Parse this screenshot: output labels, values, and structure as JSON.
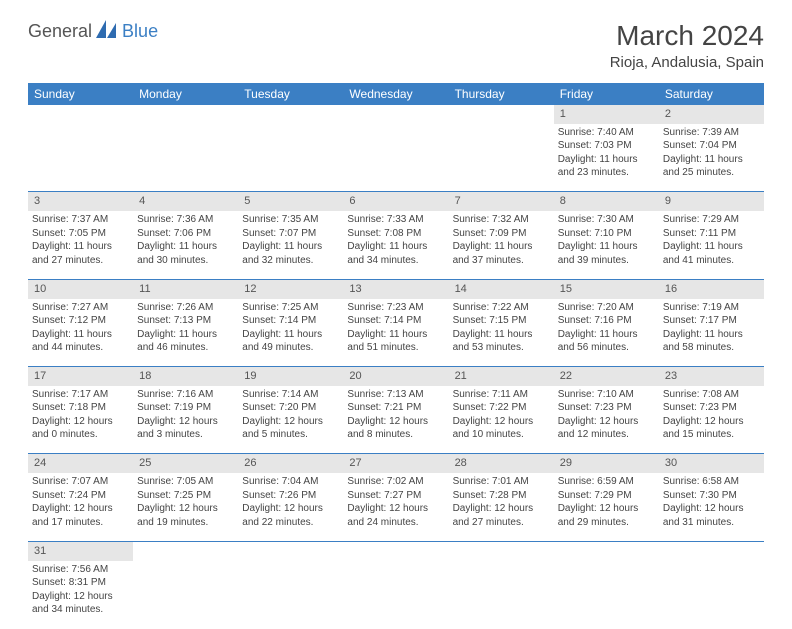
{
  "logo": {
    "part1": "General",
    "part2": "Blue"
  },
  "title": "March 2024",
  "location": "Rioja, Andalusia, Spain",
  "colors": {
    "header_bg": "#3b7fc4",
    "header_text": "#ffffff",
    "daynum_bg": "#e6e6e6",
    "cell_border": "#3b7fc4",
    "body_text": "#444444"
  },
  "day_headers": [
    "Sunday",
    "Monday",
    "Tuesday",
    "Wednesday",
    "Thursday",
    "Friday",
    "Saturday"
  ],
  "weeks": [
    [
      null,
      null,
      null,
      null,
      null,
      {
        "n": "1",
        "sunrise": "Sunrise: 7:40 AM",
        "sunset": "Sunset: 7:03 PM",
        "daylight1": "Daylight: 11 hours",
        "daylight2": "and 23 minutes."
      },
      {
        "n": "2",
        "sunrise": "Sunrise: 7:39 AM",
        "sunset": "Sunset: 7:04 PM",
        "daylight1": "Daylight: 11 hours",
        "daylight2": "and 25 minutes."
      }
    ],
    [
      {
        "n": "3",
        "sunrise": "Sunrise: 7:37 AM",
        "sunset": "Sunset: 7:05 PM",
        "daylight1": "Daylight: 11 hours",
        "daylight2": "and 27 minutes."
      },
      {
        "n": "4",
        "sunrise": "Sunrise: 7:36 AM",
        "sunset": "Sunset: 7:06 PM",
        "daylight1": "Daylight: 11 hours",
        "daylight2": "and 30 minutes."
      },
      {
        "n": "5",
        "sunrise": "Sunrise: 7:35 AM",
        "sunset": "Sunset: 7:07 PM",
        "daylight1": "Daylight: 11 hours",
        "daylight2": "and 32 minutes."
      },
      {
        "n": "6",
        "sunrise": "Sunrise: 7:33 AM",
        "sunset": "Sunset: 7:08 PM",
        "daylight1": "Daylight: 11 hours",
        "daylight2": "and 34 minutes."
      },
      {
        "n": "7",
        "sunrise": "Sunrise: 7:32 AM",
        "sunset": "Sunset: 7:09 PM",
        "daylight1": "Daylight: 11 hours",
        "daylight2": "and 37 minutes."
      },
      {
        "n": "8",
        "sunrise": "Sunrise: 7:30 AM",
        "sunset": "Sunset: 7:10 PM",
        "daylight1": "Daylight: 11 hours",
        "daylight2": "and 39 minutes."
      },
      {
        "n": "9",
        "sunrise": "Sunrise: 7:29 AM",
        "sunset": "Sunset: 7:11 PM",
        "daylight1": "Daylight: 11 hours",
        "daylight2": "and 41 minutes."
      }
    ],
    [
      {
        "n": "10",
        "sunrise": "Sunrise: 7:27 AM",
        "sunset": "Sunset: 7:12 PM",
        "daylight1": "Daylight: 11 hours",
        "daylight2": "and 44 minutes."
      },
      {
        "n": "11",
        "sunrise": "Sunrise: 7:26 AM",
        "sunset": "Sunset: 7:13 PM",
        "daylight1": "Daylight: 11 hours",
        "daylight2": "and 46 minutes."
      },
      {
        "n": "12",
        "sunrise": "Sunrise: 7:25 AM",
        "sunset": "Sunset: 7:14 PM",
        "daylight1": "Daylight: 11 hours",
        "daylight2": "and 49 minutes."
      },
      {
        "n": "13",
        "sunrise": "Sunrise: 7:23 AM",
        "sunset": "Sunset: 7:14 PM",
        "daylight1": "Daylight: 11 hours",
        "daylight2": "and 51 minutes."
      },
      {
        "n": "14",
        "sunrise": "Sunrise: 7:22 AM",
        "sunset": "Sunset: 7:15 PM",
        "daylight1": "Daylight: 11 hours",
        "daylight2": "and 53 minutes."
      },
      {
        "n": "15",
        "sunrise": "Sunrise: 7:20 AM",
        "sunset": "Sunset: 7:16 PM",
        "daylight1": "Daylight: 11 hours",
        "daylight2": "and 56 minutes."
      },
      {
        "n": "16",
        "sunrise": "Sunrise: 7:19 AM",
        "sunset": "Sunset: 7:17 PM",
        "daylight1": "Daylight: 11 hours",
        "daylight2": "and 58 minutes."
      }
    ],
    [
      {
        "n": "17",
        "sunrise": "Sunrise: 7:17 AM",
        "sunset": "Sunset: 7:18 PM",
        "daylight1": "Daylight: 12 hours",
        "daylight2": "and 0 minutes."
      },
      {
        "n": "18",
        "sunrise": "Sunrise: 7:16 AM",
        "sunset": "Sunset: 7:19 PM",
        "daylight1": "Daylight: 12 hours",
        "daylight2": "and 3 minutes."
      },
      {
        "n": "19",
        "sunrise": "Sunrise: 7:14 AM",
        "sunset": "Sunset: 7:20 PM",
        "daylight1": "Daylight: 12 hours",
        "daylight2": "and 5 minutes."
      },
      {
        "n": "20",
        "sunrise": "Sunrise: 7:13 AM",
        "sunset": "Sunset: 7:21 PM",
        "daylight1": "Daylight: 12 hours",
        "daylight2": "and 8 minutes."
      },
      {
        "n": "21",
        "sunrise": "Sunrise: 7:11 AM",
        "sunset": "Sunset: 7:22 PM",
        "daylight1": "Daylight: 12 hours",
        "daylight2": "and 10 minutes."
      },
      {
        "n": "22",
        "sunrise": "Sunrise: 7:10 AM",
        "sunset": "Sunset: 7:23 PM",
        "daylight1": "Daylight: 12 hours",
        "daylight2": "and 12 minutes."
      },
      {
        "n": "23",
        "sunrise": "Sunrise: 7:08 AM",
        "sunset": "Sunset: 7:23 PM",
        "daylight1": "Daylight: 12 hours",
        "daylight2": "and 15 minutes."
      }
    ],
    [
      {
        "n": "24",
        "sunrise": "Sunrise: 7:07 AM",
        "sunset": "Sunset: 7:24 PM",
        "daylight1": "Daylight: 12 hours",
        "daylight2": "and 17 minutes."
      },
      {
        "n": "25",
        "sunrise": "Sunrise: 7:05 AM",
        "sunset": "Sunset: 7:25 PM",
        "daylight1": "Daylight: 12 hours",
        "daylight2": "and 19 minutes."
      },
      {
        "n": "26",
        "sunrise": "Sunrise: 7:04 AM",
        "sunset": "Sunset: 7:26 PM",
        "daylight1": "Daylight: 12 hours",
        "daylight2": "and 22 minutes."
      },
      {
        "n": "27",
        "sunrise": "Sunrise: 7:02 AM",
        "sunset": "Sunset: 7:27 PM",
        "daylight1": "Daylight: 12 hours",
        "daylight2": "and 24 minutes."
      },
      {
        "n": "28",
        "sunrise": "Sunrise: 7:01 AM",
        "sunset": "Sunset: 7:28 PM",
        "daylight1": "Daylight: 12 hours",
        "daylight2": "and 27 minutes."
      },
      {
        "n": "29",
        "sunrise": "Sunrise: 6:59 AM",
        "sunset": "Sunset: 7:29 PM",
        "daylight1": "Daylight: 12 hours",
        "daylight2": "and 29 minutes."
      },
      {
        "n": "30",
        "sunrise": "Sunrise: 6:58 AM",
        "sunset": "Sunset: 7:30 PM",
        "daylight1": "Daylight: 12 hours",
        "daylight2": "and 31 minutes."
      }
    ],
    [
      {
        "n": "31",
        "sunrise": "Sunrise: 7:56 AM",
        "sunset": "Sunset: 8:31 PM",
        "daylight1": "Daylight: 12 hours",
        "daylight2": "and 34 minutes."
      },
      null,
      null,
      null,
      null,
      null,
      null
    ]
  ]
}
